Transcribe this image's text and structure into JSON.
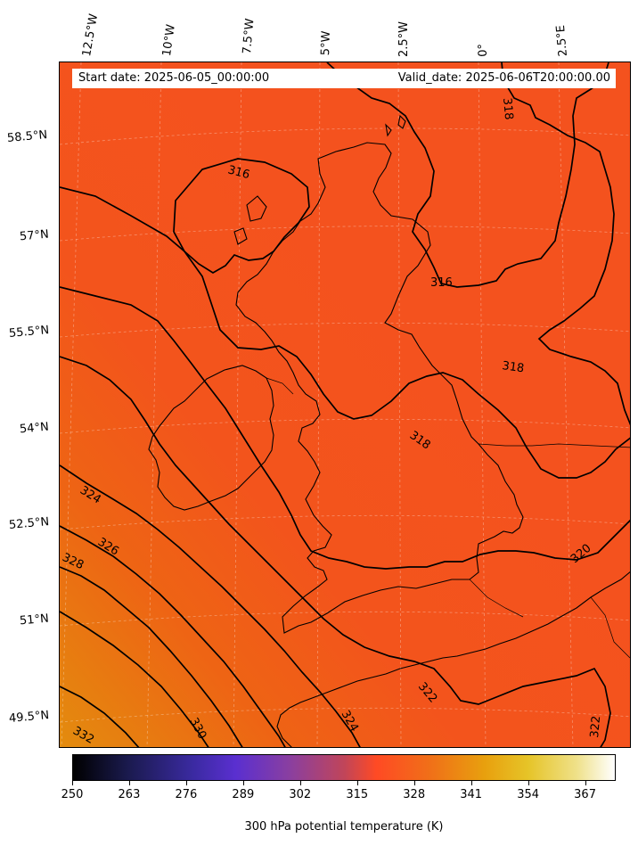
{
  "map": {
    "start_date": "Start date: 2025-06-05_00:00:00",
    "valid_date": "Valid_date: 2025-06-06T20:00:00.00",
    "lon_labels": [
      "12.5°W",
      "10°W",
      "7.5°W",
      "5°W",
      "2.5°W",
      "0°",
      "2.5°E"
    ],
    "lat_labels": [
      "58.5°N",
      "57°N",
      "55.5°N",
      "54°N",
      "52.5°N",
      "51°N",
      "49.5°N"
    ],
    "contour_labels": [
      "316",
      "316",
      "318",
      "318",
      "318",
      "320",
      "322",
      "322",
      "324",
      "324",
      "326",
      "328",
      "330",
      "332"
    ],
    "colorbar": {
      "ticks": [
        "250",
        "263",
        "276",
        "289",
        "302",
        "315",
        "328",
        "341",
        "354",
        "367"
      ],
      "label": "300 hPa potential temperature (K)",
      "colormap": "CMRmap",
      "range": [
        250,
        374
      ]
    },
    "colors": {
      "north_fill": "#f4521e",
      "south_fill": "#e38c0e"
    }
  }
}
